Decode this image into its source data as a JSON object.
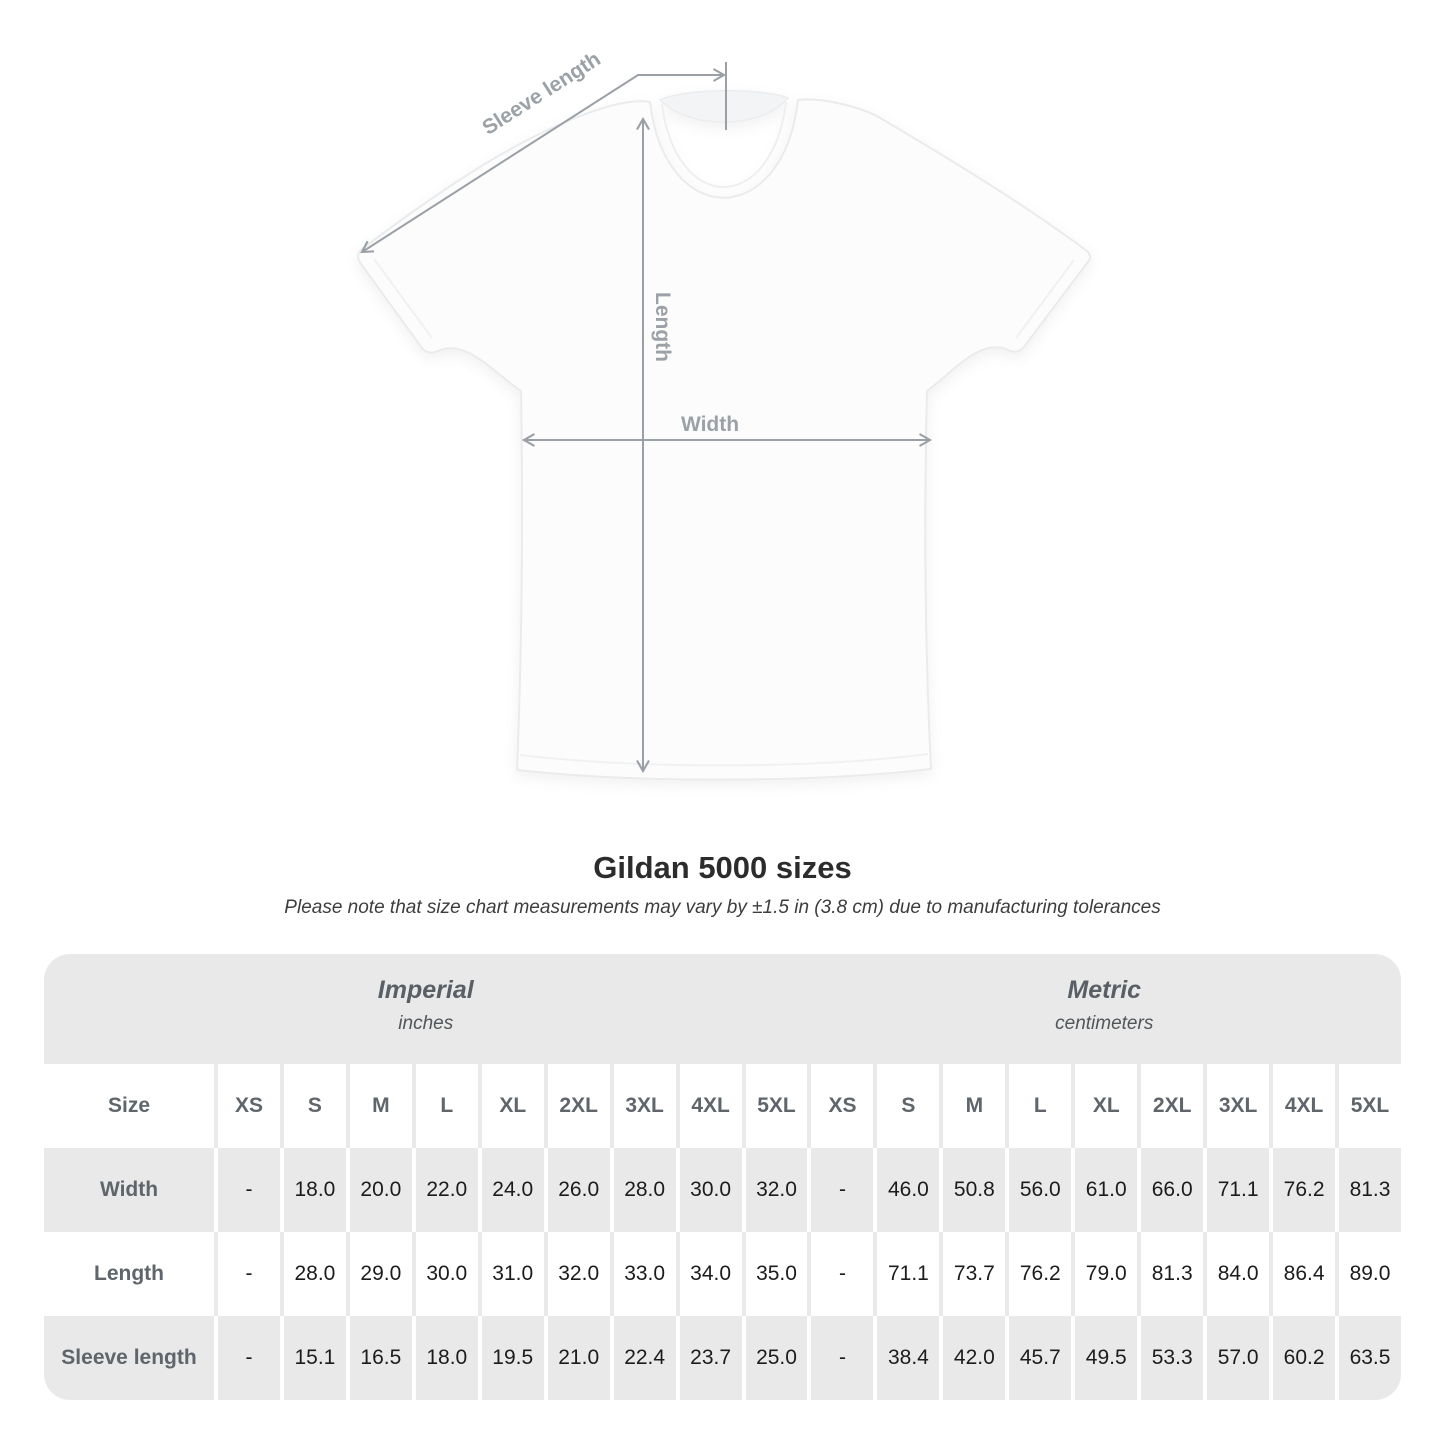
{
  "figure": {
    "labels": {
      "sleeve_length": "Sleeve length",
      "length": "Length",
      "width": "Width"
    }
  },
  "title": "Gildan 5000 sizes",
  "subtitle": "Please note that size chart measurements may vary by ±1.5 in (3.8 cm) due to manufacturing tolerances",
  "table": {
    "unit_groups": [
      {
        "label": "Imperial",
        "sublabel": "inches"
      },
      {
        "label": "Metric",
        "sublabel": "centimeters"
      }
    ],
    "size_col_header": "Size",
    "sizes": [
      "XS",
      "S",
      "M",
      "L",
      "XL",
      "2XL",
      "3XL",
      "4XL",
      "5XL"
    ],
    "rows": [
      {
        "label": "Width",
        "imperial": [
          "-",
          "18.0",
          "20.0",
          "22.0",
          "24.0",
          "26.0",
          "28.0",
          "30.0",
          "32.0"
        ],
        "metric": [
          "-",
          "46.0",
          "50.8",
          "56.0",
          "61.0",
          "66.0",
          "71.1",
          "76.2",
          "81.3"
        ]
      },
      {
        "label": "Length",
        "imperial": [
          "-",
          "28.0",
          "29.0",
          "30.0",
          "31.0",
          "32.0",
          "33.0",
          "34.0",
          "35.0"
        ],
        "metric": [
          "-",
          "71.1",
          "73.7",
          "76.2",
          "79.0",
          "81.3",
          "84.0",
          "86.4",
          "89.0"
        ]
      },
      {
        "label": "Sleeve length",
        "imperial": [
          "-",
          "15.1",
          "16.5",
          "18.0",
          "19.5",
          "21.0",
          "22.4",
          "23.7",
          "25.0"
        ],
        "metric": [
          "-",
          "38.4",
          "42.0",
          "45.7",
          "49.5",
          "53.3",
          "57.0",
          "60.2",
          "63.5"
        ]
      }
    ]
  },
  "colors": {
    "row_gray": "#e9e9e9",
    "label_text": "#5f656b",
    "value_text": "#1c1c1c",
    "diagram_gray": "#9aa0a5"
  },
  "chart_data": {
    "type": "table",
    "title": "Gildan 5000 sizes",
    "note": "Please note that size chart measurements may vary by ±1.5 in (3.8 cm) due to manufacturing tolerances",
    "unit_groups": [
      "Imperial (inches)",
      "Metric (centimeters)"
    ],
    "sizes": [
      "XS",
      "S",
      "M",
      "L",
      "XL",
      "2XL",
      "3XL",
      "4XL",
      "5XL"
    ],
    "measurements": [
      {
        "measure": "Width",
        "imperial_in": [
          null,
          18.0,
          20.0,
          22.0,
          24.0,
          26.0,
          28.0,
          30.0,
          32.0
        ],
        "metric_cm": [
          null,
          46.0,
          50.8,
          56.0,
          61.0,
          66.0,
          71.1,
          76.2,
          81.3
        ]
      },
      {
        "measure": "Length",
        "imperial_in": [
          null,
          28.0,
          29.0,
          30.0,
          31.0,
          32.0,
          33.0,
          34.0,
          35.0
        ],
        "metric_cm": [
          null,
          71.1,
          73.7,
          76.2,
          79.0,
          81.3,
          84.0,
          86.4,
          89.0
        ]
      },
      {
        "measure": "Sleeve length",
        "imperial_in": [
          null,
          15.1,
          16.5,
          18.0,
          19.5,
          21.0,
          22.4,
          23.7,
          25.0
        ],
        "metric_cm": [
          null,
          38.4,
          42.0,
          45.7,
          49.5,
          53.3,
          57.0,
          60.2,
          63.5
        ]
      }
    ]
  }
}
